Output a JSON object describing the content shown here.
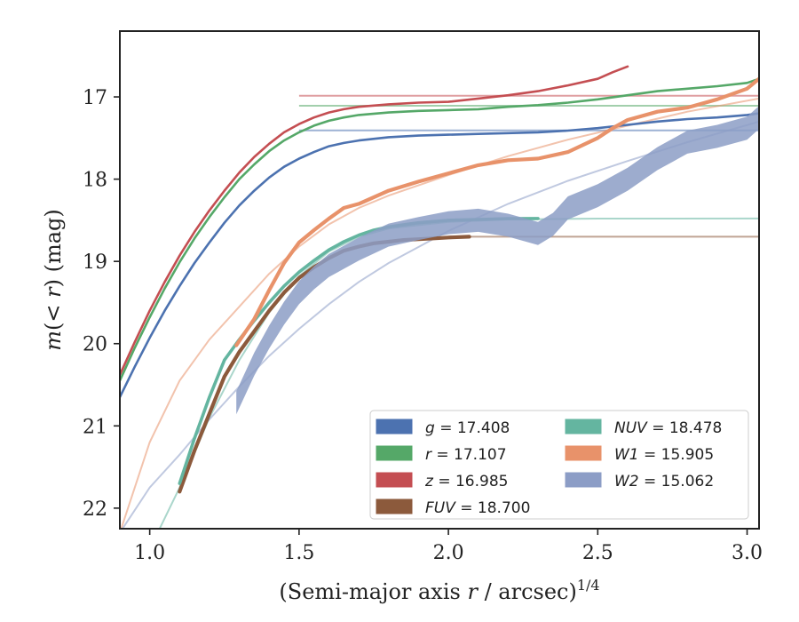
{
  "chart_data": {
    "type": "line",
    "xlabel": "(Semi-major axis r / arcsec)",
    "xlabel_italic": "r",
    "xlabel_sup": "1/4",
    "ylabel": "m(< r) (mag)",
    "xlim": [
      0.9,
      3.04
    ],
    "ylim": [
      22.25,
      16.2
    ],
    "y_inverted": true,
    "xticks": [
      1.0,
      1.5,
      2.0,
      2.5,
      3.0
    ],
    "xtick_labels": [
      "1.0",
      "1.5",
      "2.0",
      "2.5",
      "3.0"
    ],
    "yticks": [
      17,
      18,
      19,
      20,
      21,
      22
    ],
    "ytick_labels": [
      "17",
      "18",
      "19",
      "20",
      "21",
      "22"
    ],
    "grid": false,
    "legend_position": "bottom-right",
    "series": [
      {
        "name": "g = 17.408",
        "band": "g",
        "value": "17.408",
        "color": "#4c72b0",
        "label_italic": true,
        "data": {
          "x": [
            0.9,
            0.95,
            1.0,
            1.05,
            1.1,
            1.15,
            1.2,
            1.25,
            1.3,
            1.35,
            1.4,
            1.45,
            1.5,
            1.55,
            1.6,
            1.65,
            1.7,
            1.8,
            1.9,
            2.0,
            2.1,
            2.2,
            2.3,
            2.4,
            2.5,
            2.6,
            2.7,
            2.8,
            2.9,
            3.0,
            3.04
          ],
          "y": [
            20.65,
            20.28,
            19.93,
            19.6,
            19.3,
            19.02,
            18.77,
            18.53,
            18.32,
            18.14,
            17.98,
            17.85,
            17.75,
            17.67,
            17.6,
            17.56,
            17.53,
            17.49,
            17.47,
            17.46,
            17.45,
            17.44,
            17.43,
            17.41,
            17.38,
            17.34,
            17.3,
            17.27,
            17.25,
            17.22,
            17.2
          ]
        },
        "model": {
          "x": [
            1.5,
            2.0,
            2.5,
            3.04
          ],
          "y": [
            17.408,
            17.408,
            17.408,
            17.408
          ]
        }
      },
      {
        "name": "r = 17.107",
        "band": "r",
        "value": "17.107",
        "color": "#55a868",
        "label_italic": true,
        "data": {
          "x": [
            0.9,
            0.95,
            1.0,
            1.05,
            1.1,
            1.15,
            1.2,
            1.25,
            1.3,
            1.35,
            1.4,
            1.45,
            1.5,
            1.55,
            1.6,
            1.65,
            1.7,
            1.8,
            1.9,
            2.0,
            2.1,
            2.2,
            2.3,
            2.4,
            2.5,
            2.6,
            2.7,
            2.8,
            2.9,
            3.0,
            3.04
          ],
          "y": [
            20.45,
            20.05,
            19.68,
            19.33,
            19.01,
            18.72,
            18.46,
            18.22,
            18.0,
            17.82,
            17.66,
            17.53,
            17.43,
            17.35,
            17.29,
            17.25,
            17.22,
            17.19,
            17.17,
            17.16,
            17.15,
            17.12,
            17.1,
            17.07,
            17.03,
            16.98,
            16.93,
            16.9,
            16.87,
            16.83,
            16.78
          ]
        },
        "model": {
          "x": [
            1.5,
            2.0,
            2.5,
            3.04
          ],
          "y": [
            17.107,
            17.107,
            17.107,
            17.107
          ]
        }
      },
      {
        "name": "z = 16.985",
        "band": "z",
        "value": "16.985",
        "color": "#c44e52",
        "label_italic": true,
        "data": {
          "x": [
            0.9,
            0.95,
            1.0,
            1.05,
            1.1,
            1.15,
            1.2,
            1.25,
            1.3,
            1.35,
            1.4,
            1.45,
            1.5,
            1.55,
            1.6,
            1.65,
            1.7,
            1.8,
            1.9,
            2.0,
            2.1,
            2.2,
            2.3,
            2.4,
            2.5,
            2.55,
            2.6
          ],
          "y": [
            20.38,
            19.98,
            19.6,
            19.25,
            18.93,
            18.64,
            18.38,
            18.14,
            17.92,
            17.73,
            17.57,
            17.43,
            17.33,
            17.25,
            17.19,
            17.15,
            17.12,
            17.09,
            17.07,
            17.06,
            17.02,
            16.98,
            16.93,
            16.86,
            16.78,
            16.7,
            16.63
          ]
        },
        "model": {
          "x": [
            1.5,
            2.0,
            2.5,
            3.04
          ],
          "y": [
            16.985,
            16.985,
            16.985,
            16.985
          ]
        }
      },
      {
        "name": "FUV = 18.700",
        "band": "FUV",
        "value": "18.700",
        "color": "#8c5a3c",
        "label_italic": true,
        "data": {
          "x": [
            1.1,
            1.15,
            1.2,
            1.25,
            1.3,
            1.35,
            1.4,
            1.45,
            1.5,
            1.55,
            1.6,
            1.65,
            1.7,
            1.75,
            1.8,
            1.85,
            1.9,
            1.95,
            2.0,
            2.07
          ],
          "y": [
            21.8,
            21.3,
            20.85,
            20.4,
            20.1,
            19.85,
            19.6,
            19.38,
            19.2,
            19.07,
            18.96,
            18.87,
            18.82,
            18.78,
            18.76,
            18.74,
            18.73,
            18.72,
            18.71,
            18.7
          ]
        },
        "model": {
          "x": [
            2.0,
            2.5,
            3.04
          ],
          "y": [
            18.7,
            18.7,
            18.7
          ]
        }
      },
      {
        "name": "NUV = 18.478",
        "band": "NUV",
        "value": "18.478",
        "color": "#64b5a0",
        "label_italic": true,
        "data": {
          "x": [
            1.1,
            1.15,
            1.2,
            1.25,
            1.3,
            1.35,
            1.4,
            1.45,
            1.5,
            1.55,
            1.6,
            1.65,
            1.7,
            1.75,
            1.8,
            1.9,
            2.0,
            2.1,
            2.2,
            2.3
          ],
          "y": [
            21.7,
            21.15,
            20.65,
            20.2,
            19.95,
            19.72,
            19.5,
            19.3,
            19.13,
            18.99,
            18.86,
            18.76,
            18.68,
            18.62,
            18.58,
            18.53,
            18.5,
            18.49,
            18.48,
            18.478
          ]
        },
        "model": {
          "x": [
            1.0,
            1.1,
            1.2,
            1.3,
            1.4,
            1.5,
            1.6,
            1.7,
            1.8,
            2.0,
            2.2,
            2.5,
            3.04
          ],
          "y": [
            22.5,
            21.75,
            20.9,
            20.2,
            19.62,
            19.18,
            18.88,
            18.7,
            18.6,
            18.52,
            18.49,
            18.48,
            18.478
          ]
        }
      },
      {
        "name": "W1 = 15.905",
        "band": "W1",
        "value": "15.905",
        "color": "#e8926a",
        "label_italic": true,
        "data": {
          "x": [
            1.29,
            1.35,
            1.4,
            1.45,
            1.5,
            1.55,
            1.6,
            1.65,
            1.7,
            1.8,
            1.9,
            2.0,
            2.1,
            2.2,
            2.3,
            2.4,
            2.5,
            2.55,
            2.6,
            2.7,
            2.8,
            2.9,
            3.0,
            3.04
          ],
          "y": [
            20.02,
            19.7,
            19.35,
            19.02,
            18.77,
            18.62,
            18.48,
            18.35,
            18.3,
            18.14,
            18.03,
            17.93,
            17.83,
            17.77,
            17.75,
            17.67,
            17.5,
            17.38,
            17.28,
            17.18,
            17.13,
            17.03,
            16.9,
            16.78
          ]
        },
        "model": {
          "x": [
            0.9,
            1.0,
            1.1,
            1.2,
            1.3,
            1.4,
            1.5,
            1.6,
            1.7,
            1.8,
            2.0,
            2.2,
            2.4,
            2.6,
            2.8,
            3.04
          ],
          "y": [
            22.3,
            21.2,
            20.45,
            19.95,
            19.55,
            19.15,
            18.82,
            18.55,
            18.35,
            18.2,
            17.95,
            17.72,
            17.52,
            17.35,
            17.18,
            17.02
          ]
        }
      },
      {
        "name": "W2 = 15.062",
        "band": "W2",
        "value": "15.062",
        "color": "#8c9dc6",
        "label_italic": true,
        "data": {
          "x": [
            1.29,
            1.35,
            1.4,
            1.45,
            1.5,
            1.55,
            1.6,
            1.7,
            1.8,
            1.9,
            2.0,
            2.1,
            2.2,
            2.3,
            2.35,
            2.4,
            2.5,
            2.6,
            2.7,
            2.75,
            2.8,
            2.9,
            3.0,
            3.04
          ],
          "y": [
            20.72,
            20.25,
            19.92,
            19.63,
            19.38,
            19.2,
            19.05,
            18.85,
            18.68,
            18.6,
            18.53,
            18.5,
            18.56,
            18.66,
            18.55,
            18.35,
            18.2,
            18.0,
            17.75,
            17.65,
            17.55,
            17.48,
            17.38,
            17.25
          ]
        },
        "band_width": 0.14,
        "model": {
          "x": [
            0.9,
            1.0,
            1.1,
            1.2,
            1.3,
            1.4,
            1.5,
            1.6,
            1.7,
            1.8,
            2.0,
            2.2,
            2.4,
            2.6,
            2.8,
            3.04
          ],
          "y": [
            22.3,
            21.75,
            21.35,
            20.92,
            20.52,
            20.15,
            19.82,
            19.52,
            19.25,
            19.02,
            18.63,
            18.3,
            18.02,
            17.78,
            17.55,
            17.3
          ]
        }
      }
    ]
  }
}
